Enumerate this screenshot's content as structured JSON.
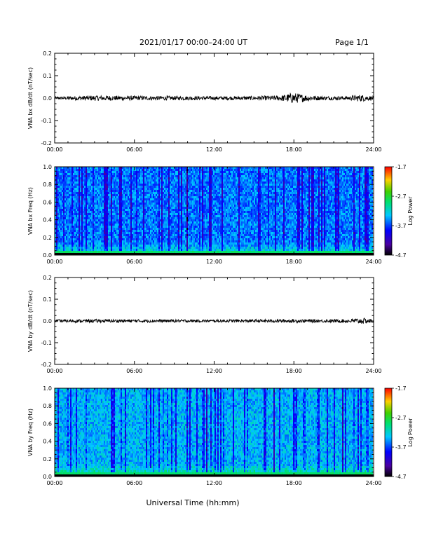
{
  "header": {
    "title": "2021/01/17  00:00–24:00 UT",
    "page": "Page 1/1"
  },
  "chart_data": [
    {
      "type": "line",
      "id": "bx-dbdt",
      "ylabel": "VNA bx dB/dt (nT/sec)",
      "xlim": [
        "00:00",
        "24:00"
      ],
      "ylim": [
        -0.2,
        0.2
      ],
      "xticks": [
        "00:00",
        "06:00",
        "12:00",
        "18:00",
        "24:00"
      ],
      "yticks": [
        "-0.2",
        "-0.1",
        "0.0",
        "0.1",
        "0.2"
      ],
      "series": [
        {
          "x": [
            "00:00",
            "03:00",
            "06:00",
            "09:00",
            "12:00",
            "15:00",
            "17:00",
            "18:00",
            "18:30",
            "20:00",
            "22:00",
            "23:00",
            "24:00"
          ],
          "y_envelope": [
            0.006,
            0.012,
            0.01,
            0.009,
            0.008,
            0.009,
            0.012,
            0.025,
            0.018,
            0.009,
            0.008,
            0.016,
            0.008
          ]
        }
      ]
    },
    {
      "type": "heatmap",
      "id": "bx-spec",
      "ylabel": "VNA bx Freq (Hz)",
      "xlim": [
        "00:00",
        "24:00"
      ],
      "ylim": [
        0.0,
        1.0
      ],
      "xticks": [
        "00:00",
        "06:00",
        "12:00",
        "18:00",
        "24:00"
      ],
      "yticks": [
        "0.0",
        "0.2",
        "0.4",
        "0.6",
        "0.8",
        "1.0"
      ],
      "colorbar": {
        "label": "Log Power",
        "min": -4.7,
        "max": -1.7,
        "ticks": [
          "-1.7",
          "-2.7",
          "-3.7",
          "-4.7"
        ]
      }
    },
    {
      "type": "line",
      "id": "by-dbdt",
      "ylabel": "VNA by dB/dt (nT/sec)",
      "xlim": [
        "00:00",
        "24:00"
      ],
      "ylim": [
        -0.2,
        0.2
      ],
      "xticks": [
        "00:00",
        "06:00",
        "12:00",
        "18:00",
        "24:00"
      ],
      "yticks": [
        "-0.2",
        "-0.1",
        "0.0",
        "0.1",
        "0.2"
      ],
      "series": [
        {
          "x": [
            "00:00",
            "03:00",
            "06:00",
            "09:00",
            "12:00",
            "15:00",
            "18:00",
            "20:00",
            "22:00",
            "23:00",
            "23:30",
            "24:00"
          ],
          "y_envelope": [
            0.006,
            0.008,
            0.007,
            0.007,
            0.006,
            0.007,
            0.008,
            0.007,
            0.008,
            0.014,
            0.012,
            0.008
          ]
        }
      ]
    },
    {
      "type": "heatmap",
      "id": "by-spec",
      "ylabel": "VNA by Freq (Hz)",
      "xlim": [
        "00:00",
        "24:00"
      ],
      "ylim": [
        0.0,
        1.0
      ],
      "xticks": [
        "00:00",
        "06:00",
        "12:00",
        "18:00",
        "24:00"
      ],
      "yticks": [
        "0.0",
        "0.2",
        "0.4",
        "0.6",
        "0.8",
        "1.0"
      ],
      "colorbar": {
        "label": "Log Power",
        "min": -4.7,
        "max": -1.7,
        "ticks": [
          "-1.7",
          "-2.7",
          "-3.7",
          "-4.7"
        ]
      }
    }
  ],
  "xlabel": "Universal Time (hh:mm)"
}
